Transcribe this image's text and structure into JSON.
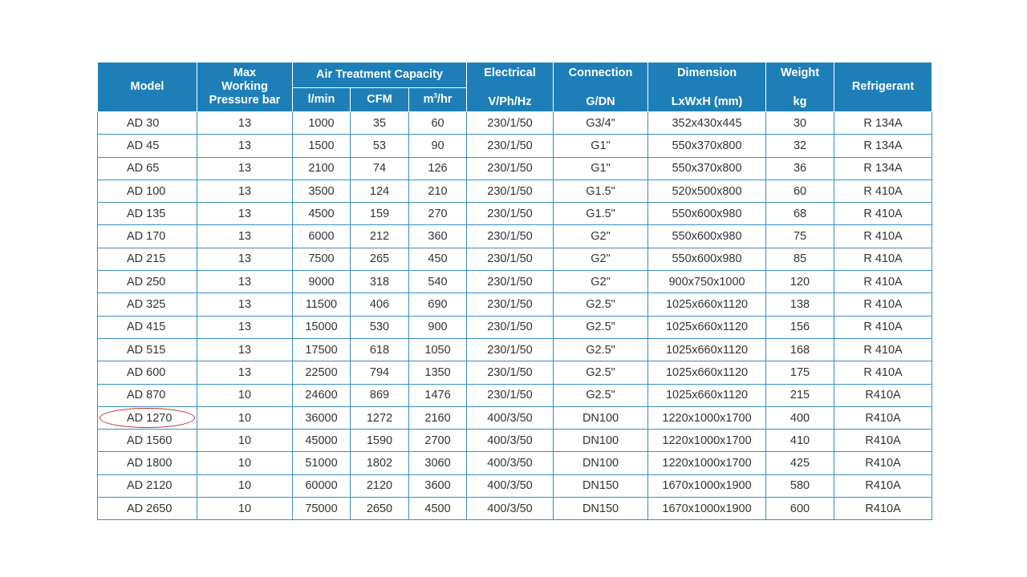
{
  "headers": {
    "model": "Model",
    "max_working_pressure": [
      "Max",
      "Working",
      "Pressure bar"
    ],
    "air_treatment_capacity": "Air Treatment Capacity",
    "capacity_units": {
      "lmin": "l/min",
      "cfm": "CFM",
      "m3hr_base": "m",
      "m3hr_sup": "3",
      "m3hr_tail": "/hr"
    },
    "electrical": [
      "Electrical",
      "V/Ph/Hz"
    ],
    "connection": [
      "Connection",
      "G/DN"
    ],
    "dimension": [
      "Dimension",
      "LxWxH (mm)"
    ],
    "weight": [
      "Weight",
      "kg"
    ],
    "refrigerant": "Refrigerant"
  },
  "rows": [
    {
      "model": "AD 30",
      "pressure": "13",
      "lmin": "1000",
      "cfm": "35",
      "m3hr": "60",
      "electrical": "230/1/50",
      "connection": "G3/4\"",
      "dimension": "352x430x445",
      "weight": "30",
      "refrigerant": "R 134A"
    },
    {
      "model": "AD 45",
      "pressure": "13",
      "lmin": "1500",
      "cfm": "53",
      "m3hr": "90",
      "electrical": "230/1/50",
      "connection": "G1\"",
      "dimension": "550x370x800",
      "weight": "32",
      "refrigerant": "R 134A"
    },
    {
      "model": "AD 65",
      "pressure": "13",
      "lmin": "2100",
      "cfm": "74",
      "m3hr": "126",
      "electrical": "230/1/50",
      "connection": "G1\"",
      "dimension": "550x370x800",
      "weight": "36",
      "refrigerant": "R 134A"
    },
    {
      "model": "AD 100",
      "pressure": "13",
      "lmin": "3500",
      "cfm": "124",
      "m3hr": "210",
      "electrical": "230/1/50",
      "connection": "G1.5\"",
      "dimension": "520x500x800",
      "weight": "60",
      "refrigerant": "R 410A"
    },
    {
      "model": "AD 135",
      "pressure": "13",
      "lmin": "4500",
      "cfm": "159",
      "m3hr": "270",
      "electrical": "230/1/50",
      "connection": "G1.5\"",
      "dimension": "550x600x980",
      "weight": "68",
      "refrigerant": "R 410A"
    },
    {
      "model": "AD 170",
      "pressure": "13",
      "lmin": "6000",
      "cfm": "212",
      "m3hr": "360",
      "electrical": "230/1/50",
      "connection": "G2\"",
      "dimension": "550x600x980",
      "weight": "75",
      "refrigerant": "R 410A"
    },
    {
      "model": "AD 215",
      "pressure": "13",
      "lmin": "7500",
      "cfm": "265",
      "m3hr": "450",
      "electrical": "230/1/50",
      "connection": "G2\"",
      "dimension": "550x600x980",
      "weight": "85",
      "refrigerant": "R 410A"
    },
    {
      "model": "AD 250",
      "pressure": "13",
      "lmin": "9000",
      "cfm": "318",
      "m3hr": "540",
      "electrical": "230/1/50",
      "connection": "G2\"",
      "dimension": "900x750x1000",
      "weight": "120",
      "refrigerant": "R 410A"
    },
    {
      "model": "AD 325",
      "pressure": "13",
      "lmin": "11500",
      "cfm": "406",
      "m3hr": "690",
      "electrical": "230/1/50",
      "connection": "G2.5\"",
      "dimension": "1025x660x1120",
      "weight": "138",
      "refrigerant": "R 410A"
    },
    {
      "model": "AD 415",
      "pressure": "13",
      "lmin": "15000",
      "cfm": "530",
      "m3hr": "900",
      "electrical": "230/1/50",
      "connection": "G2.5\"",
      "dimension": "1025x660x1120",
      "weight": "156",
      "refrigerant": "R 410A"
    },
    {
      "model": "AD 515",
      "pressure": "13",
      "lmin": "17500",
      "cfm": "618",
      "m3hr": "1050",
      "electrical": "230/1/50",
      "connection": "G2.5\"",
      "dimension": "1025x660x1120",
      "weight": "168",
      "refrigerant": "R 410A"
    },
    {
      "model": "AD 600",
      "pressure": "13",
      "lmin": "22500",
      "cfm": "794",
      "m3hr": "1350",
      "electrical": "230/1/50",
      "connection": "G2.5\"",
      "dimension": "1025x660x1120",
      "weight": "175",
      "refrigerant": "R 410A"
    },
    {
      "model": "AD 870",
      "pressure": "10",
      "lmin": "24600",
      "cfm": "869",
      "m3hr": "1476",
      "electrical": "230/1/50",
      "connection": "G2.5\"",
      "dimension": "1025x660x1120",
      "weight": "215",
      "refrigerant": "R410A"
    },
    {
      "model": "AD 1270",
      "pressure": "10",
      "lmin": "36000",
      "cfm": "1272",
      "m3hr": "2160",
      "electrical": "400/3/50",
      "connection": "DN100",
      "dimension": "1220x1000x1700",
      "weight": "400",
      "refrigerant": "R410A",
      "circled": true
    },
    {
      "model": "AD 1560",
      "pressure": "10",
      "lmin": "45000",
      "cfm": "1590",
      "m3hr": "2700",
      "electrical": "400/3/50",
      "connection": "DN100",
      "dimension": "1220x1000x1700",
      "weight": "410",
      "refrigerant": "R410A"
    },
    {
      "model": "AD 1800",
      "pressure": "10",
      "lmin": "51000",
      "cfm": "1802",
      "m3hr": "3060",
      "electrical": "400/3/50",
      "connection": "DN100",
      "dimension": "1220x1000x1700",
      "weight": "425",
      "refrigerant": "R410A"
    },
    {
      "model": "AD 2120",
      "pressure": "10",
      "lmin": "60000",
      "cfm": "2120",
      "m3hr": "3600",
      "electrical": "400/3/50",
      "connection": "DN150",
      "dimension": "1670x1000x1900",
      "weight": "580",
      "refrigerant": "R410A"
    },
    {
      "model": "AD 2650",
      "pressure": "10",
      "lmin": "75000",
      "cfm": "2650",
      "m3hr": "4500",
      "electrical": "400/3/50",
      "connection": "DN150",
      "dimension": "1670x1000x1900",
      "weight": "600",
      "refrigerant": "R410A"
    }
  ],
  "colors": {
    "header_bg": "#1e7fb8",
    "grid": "#3a8ec6",
    "annotation": "#c62828"
  }
}
